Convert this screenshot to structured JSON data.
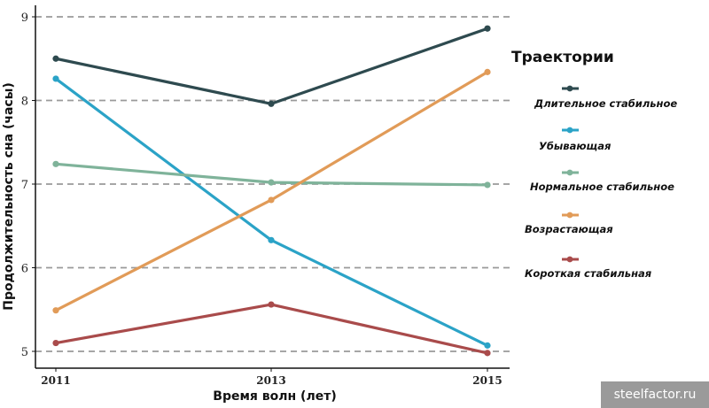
{
  "chart_data": {
    "type": "line",
    "xlabel": "Время волн (лет)",
    "ylabel": "Продолжительность сна (часы)",
    "x": [
      2011,
      2013,
      2015
    ],
    "x_ticks": [
      "2011",
      "2013",
      "2015"
    ],
    "y_ticks": [
      "5",
      "6",
      "7",
      "8",
      "9"
    ],
    "xlim": [
      2011,
      2015
    ],
    "ylim": [
      5,
      9
    ],
    "grid": "horizontal dashed",
    "legend": {
      "title": "Траектории",
      "position": "right"
    },
    "series": [
      {
        "name": "Длительное стабильное",
        "color": "#2e4a4f",
        "values": [
          8.5,
          7.96,
          8.86
        ]
      },
      {
        "name": "Убывающая",
        "color": "#2ba3c7",
        "values": [
          8.26,
          6.33,
          5.07
        ]
      },
      {
        "name": "Нормальное стабильное",
        "color": "#7fb39a",
        "values": [
          7.24,
          7.02,
          6.99
        ]
      },
      {
        "name": "Возрастающая",
        "color": "#e19b58",
        "values": [
          5.49,
          6.81,
          8.34
        ]
      },
      {
        "name": "Короткая стабильная",
        "color": "#a94b4b",
        "values": [
          5.1,
          5.56,
          4.98
        ]
      }
    ]
  },
  "watermark": "steelfactor.ru"
}
